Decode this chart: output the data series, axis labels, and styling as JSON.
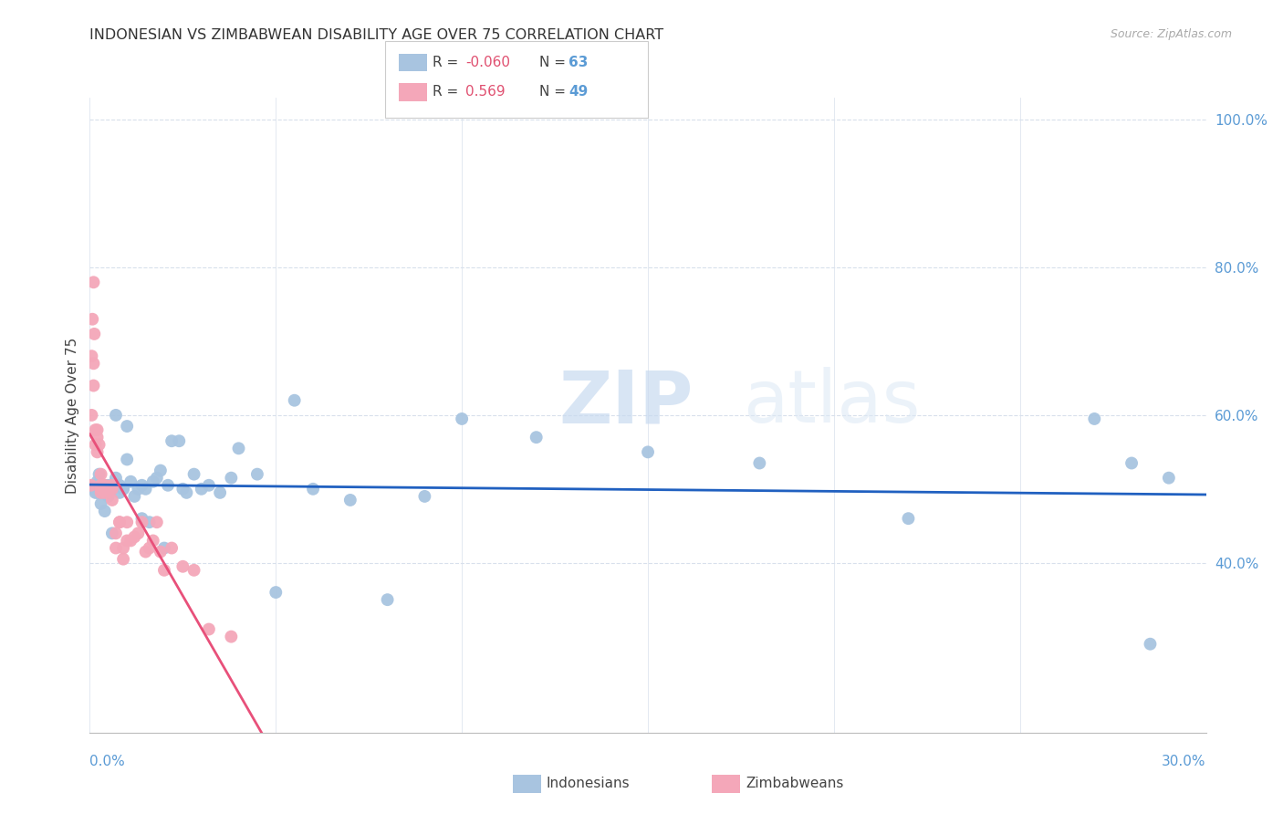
{
  "title": "INDONESIAN VS ZIMBABWEAN DISABILITY AGE OVER 75 CORRELATION CHART",
  "source": "Source: ZipAtlas.com",
  "ylabel": "Disability Age Over 75",
  "R_indonesians": "-0.060",
  "N_indonesians": "63",
  "R_zimbabweans": "0.569",
  "N_zimbabweans": "49",
  "color_indonesian": "#a8c4e0",
  "color_zimbabwean": "#f4a7b9",
  "color_trend_indonesian": "#2060c0",
  "color_trend_zimbabwean": "#e8507a",
  "background_color": "#ffffff",
  "watermark_zip": "ZIP",
  "watermark_atlas": "atlas",
  "legend_indonesians": "Indonesians",
  "legend_zimbabweans": "Zimbabweans",
  "x_min": 0.0,
  "x_max": 0.3,
  "y_min": 0.17,
  "y_max": 1.03,
  "indonesian_x": [
    0.001,
    0.001,
    0.0015,
    0.002,
    0.002,
    0.002,
    0.0025,
    0.003,
    0.003,
    0.003,
    0.004,
    0.004,
    0.004,
    0.005,
    0.005,
    0.006,
    0.006,
    0.007,
    0.007,
    0.008,
    0.008,
    0.009,
    0.009,
    0.01,
    0.01,
    0.011,
    0.012,
    0.013,
    0.014,
    0.014,
    0.015,
    0.016,
    0.017,
    0.018,
    0.019,
    0.02,
    0.021,
    0.022,
    0.024,
    0.025,
    0.026,
    0.028,
    0.03,
    0.032,
    0.035,
    0.038,
    0.04,
    0.045,
    0.05,
    0.055,
    0.06,
    0.07,
    0.08,
    0.09,
    0.1,
    0.12,
    0.15,
    0.18,
    0.22,
    0.27,
    0.28,
    0.285,
    0.29
  ],
  "indonesian_y": [
    0.5,
    0.505,
    0.495,
    0.51,
    0.5,
    0.495,
    0.52,
    0.48,
    0.505,
    0.495,
    0.5,
    0.505,
    0.47,
    0.49,
    0.505,
    0.44,
    0.5,
    0.515,
    0.6,
    0.495,
    0.505,
    0.5,
    0.5,
    0.54,
    0.585,
    0.51,
    0.49,
    0.5,
    0.505,
    0.46,
    0.5,
    0.455,
    0.51,
    0.515,
    0.525,
    0.42,
    0.505,
    0.565,
    0.565,
    0.5,
    0.495,
    0.52,
    0.5,
    0.505,
    0.495,
    0.515,
    0.555,
    0.52,
    0.36,
    0.62,
    0.5,
    0.485,
    0.35,
    0.49,
    0.595,
    0.57,
    0.55,
    0.535,
    0.46,
    0.595,
    0.535,
    0.29,
    0.515
  ],
  "zimbabwean_x": [
    0.0003,
    0.0005,
    0.0005,
    0.0007,
    0.001,
    0.001,
    0.001,
    0.0012,
    0.0015,
    0.0015,
    0.002,
    0.002,
    0.002,
    0.0025,
    0.003,
    0.003,
    0.003,
    0.003,
    0.004,
    0.004,
    0.004,
    0.005,
    0.005,
    0.006,
    0.006,
    0.006,
    0.007,
    0.007,
    0.008,
    0.008,
    0.009,
    0.009,
    0.01,
    0.01,
    0.011,
    0.012,
    0.013,
    0.014,
    0.015,
    0.016,
    0.017,
    0.018,
    0.019,
    0.02,
    0.022,
    0.025,
    0.028,
    0.032,
    0.038
  ],
  "zimbabwean_y": [
    0.505,
    0.68,
    0.6,
    0.73,
    0.78,
    0.67,
    0.64,
    0.71,
    0.58,
    0.56,
    0.58,
    0.55,
    0.57,
    0.56,
    0.52,
    0.505,
    0.495,
    0.5,
    0.495,
    0.505,
    0.5,
    0.5,
    0.495,
    0.5,
    0.485,
    0.505,
    0.42,
    0.44,
    0.455,
    0.455,
    0.42,
    0.405,
    0.43,
    0.455,
    0.43,
    0.435,
    0.44,
    0.455,
    0.415,
    0.42,
    0.43,
    0.455,
    0.415,
    0.39,
    0.42,
    0.395,
    0.39,
    0.31,
    0.3
  ],
  "grid_color": "#d8e0ec",
  "title_fontsize": 11.5,
  "source_fontsize": 9,
  "axis_label_fontsize": 11,
  "legend_fontsize": 11
}
